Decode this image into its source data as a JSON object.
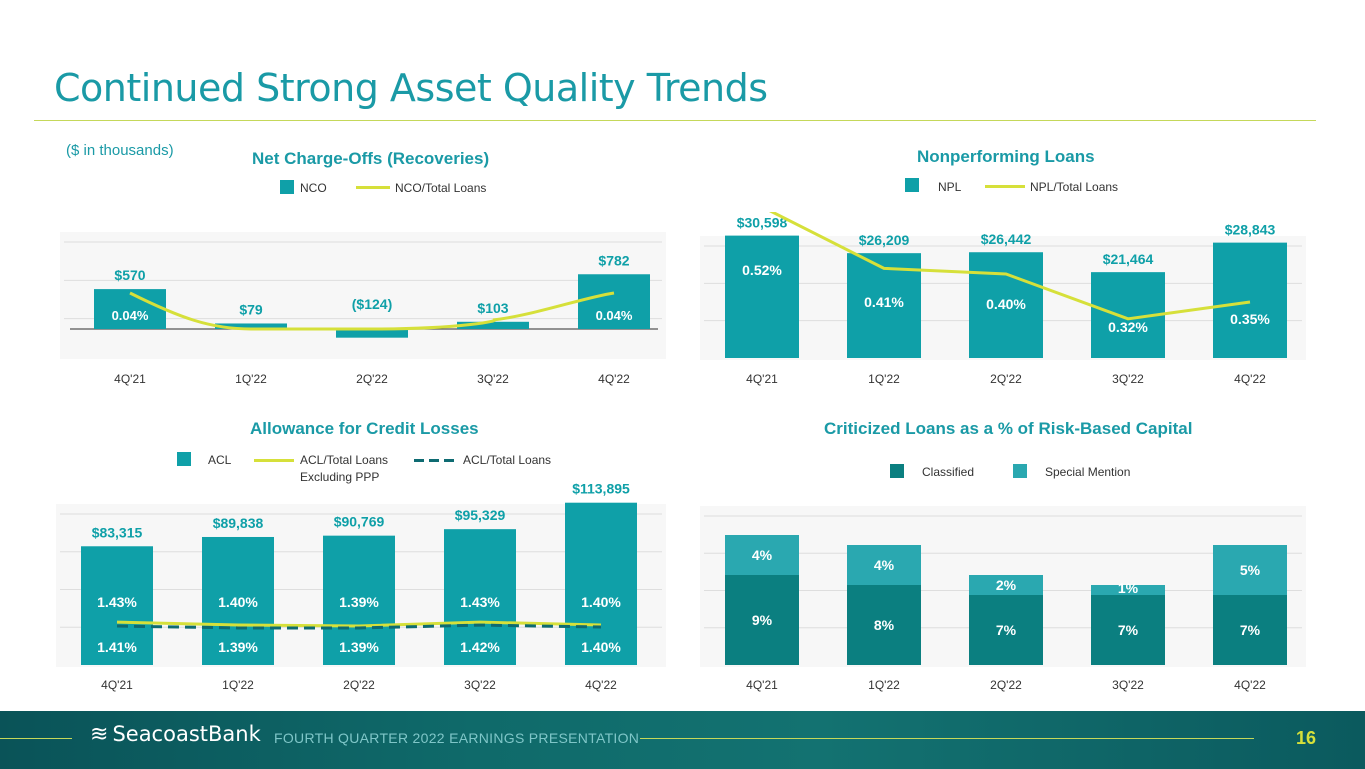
{
  "slide": {
    "title": "Continued Strong Asset Quality Trends",
    "units_note": "($ in thousands)",
    "footer_text": "FOURTH QUARTER 2022 EARNINGS PRESENTATION",
    "brand": "SeacoastBank",
    "page_number": "16"
  },
  "colors": {
    "teal": "#0fa0a8",
    "dark_teal": "#0b7f80",
    "light_teal": "#2aa8b0",
    "lime": "#d6e03a",
    "title": "#1a9aa6"
  },
  "legends": {
    "nco": {
      "bar": "NCO",
      "line": "NCO/Total Loans"
    },
    "npl": {
      "bar": "NPL",
      "line": "NPL/Total Loans"
    },
    "acl": {
      "bar": "ACL",
      "line1": "ACL/Total Loans",
      "line1b": "Excluding PPP",
      "line2": "ACL/Total Loans"
    },
    "crit": {
      "s1": "Classified",
      "s2": "Special Mention"
    }
  },
  "chart_data": [
    {
      "id": "nco",
      "type": "bar",
      "title": "Net Charge-Offs (Recoveries)",
      "categories": [
        "4Q'21",
        "1Q'22",
        "2Q'22",
        "3Q'22",
        "4Q'22"
      ],
      "series": [
        {
          "name": "NCO",
          "values": [
            570,
            79,
            -124,
            103,
            782
          ],
          "labels": [
            "$570",
            "$79",
            "($124)",
            "$103",
            "$782"
          ]
        },
        {
          "name": "NCO/Total Loans",
          "type": "line",
          "values": [
            0.04,
            0.0,
            0.0,
            0.01,
            0.04
          ],
          "labels": [
            "0.04%",
            "",
            "",
            "",
            "0.04%"
          ]
        }
      ],
      "ylim": [
        -200,
        1100
      ]
    },
    {
      "id": "npl",
      "type": "bar",
      "title": "Nonperforming Loans",
      "categories": [
        "4Q'21",
        "1Q'22",
        "2Q'22",
        "3Q'22",
        "4Q'22"
      ],
      "series": [
        {
          "name": "NPL",
          "values": [
            30598,
            26209,
            26442,
            21464,
            28843
          ],
          "labels": [
            "$30,598",
            "$26,209",
            "$26,442",
            "$21,464",
            "$28,843"
          ]
        },
        {
          "name": "NPL/Total Loans",
          "type": "line",
          "values": [
            0.52,
            0.41,
            0.4,
            0.32,
            0.35
          ],
          "labels": [
            "0.52%",
            "0.41%",
            "0.40%",
            "0.32%",
            "0.35%"
          ]
        }
      ],
      "ylim": [
        0,
        36000
      ]
    },
    {
      "id": "acl",
      "type": "bar",
      "title": "Allowance for Credit Losses",
      "categories": [
        "4Q'21",
        "1Q'22",
        "2Q'22",
        "3Q'22",
        "4Q'22"
      ],
      "series": [
        {
          "name": "ACL",
          "values": [
            83315,
            89838,
            90769,
            95329,
            113895
          ],
          "labels": [
            "$83,315",
            "$89,838",
            "$90,769",
            "$95,329",
            "$113,895"
          ]
        },
        {
          "name": "ACL/Total Loans Excluding PPP",
          "type": "line",
          "values": [
            1.43,
            1.4,
            1.39,
            1.43,
            1.4
          ],
          "labels": [
            "1.43%",
            "1.40%",
            "1.39%",
            "1.43%",
            "1.40%"
          ]
        },
        {
          "name": "ACL/Total Loans",
          "type": "line",
          "values": [
            1.41,
            1.39,
            1.39,
            1.42,
            1.4
          ],
          "labels": [
            "1.41%",
            "1.39%",
            "1.39%",
            "1.42%",
            "1.40%"
          ]
        }
      ],
      "ylim": [
        0,
        120000
      ]
    },
    {
      "id": "crit",
      "type": "bar",
      "stacked": true,
      "title": "Criticized Loans as a % of Risk-Based Capital",
      "categories": [
        "4Q'21",
        "1Q'22",
        "2Q'22",
        "3Q'22",
        "4Q'22"
      ],
      "series": [
        {
          "name": "Classified",
          "values": [
            9,
            8,
            7,
            7,
            7
          ],
          "labels": [
            "9%",
            "8%",
            "7%",
            "7%",
            "7%"
          ]
        },
        {
          "name": "Special Mention",
          "values": [
            4,
            4,
            2,
            1,
            5
          ],
          "labels": [
            "4%",
            "4%",
            "2%",
            "1%",
            "5%"
          ]
        }
      ],
      "ylim": [
        0,
        17
      ]
    }
  ]
}
